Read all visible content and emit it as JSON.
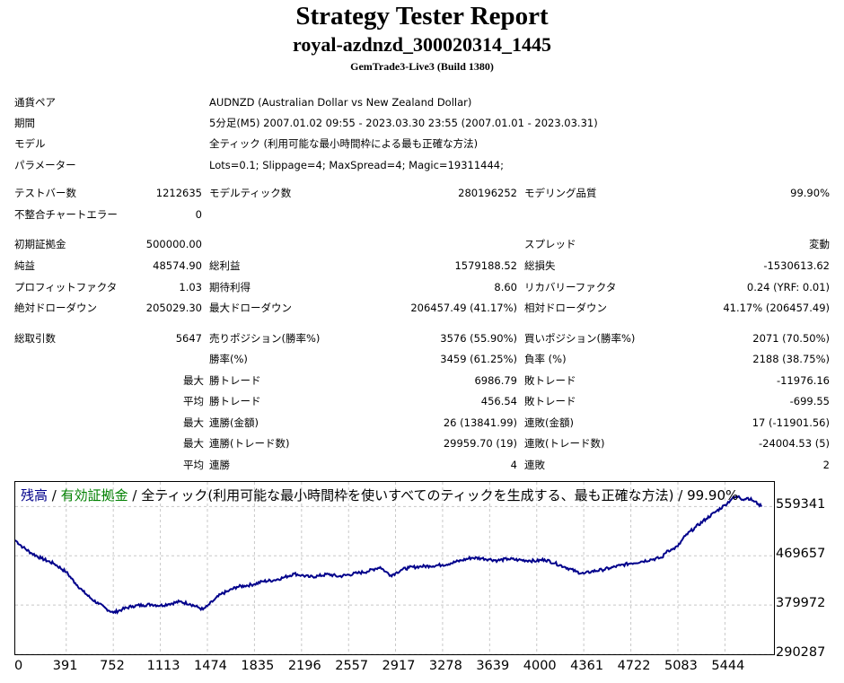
{
  "report": {
    "title": "Strategy Tester Report",
    "subtitle": "royal-azdnzd_300020314_1445",
    "build": "GemTrade3-Live3 (Build 1380)"
  },
  "info": {
    "pair_label": "通貨ペア",
    "pair_value": "AUDNZD (Australian Dollar vs New Zealand Dollar)",
    "period_label": "期間",
    "period_value": "5分足(M5) 2007.01.02 09:55 - 2023.03.30 23:55 (2007.01.01 - 2023.03.31)",
    "model_label": "モデル",
    "model_value": "全ティック (利用可能な最小時間枠による最も正確な方法)",
    "params_label": "パラメーター",
    "params_value": "Lots=0.1; Slippage=4; MaxSpread=4; Magic=19311444;"
  },
  "stats": {
    "bars_label": "テストバー数",
    "bars_value": "1212635",
    "ticks_label": "モデルティック数",
    "ticks_value": "280196252",
    "quality_label": "モデリング品質",
    "quality_value": "99.90%",
    "mismatch_label": "不整合チャートエラー",
    "mismatch_value": "0",
    "deposit_label": "初期証拠金",
    "deposit_value": "500000.00",
    "spread_label": "スプレッド",
    "spread_value": "変動",
    "net_label": "純益",
    "net_value": "48574.90",
    "gross_profit_label": "総利益",
    "gross_profit_value": "1579188.52",
    "gross_loss_label": "総損失",
    "gross_loss_value": "-1530613.62",
    "pf_label": "プロフィットファクタ",
    "pf_value": "1.03",
    "payoff_label": "期待利得",
    "payoff_value": "8.60",
    "recovery_label": "リカバリーファクタ",
    "recovery_value": "0.24 (YRF: 0.01)",
    "abs_dd_label": "絶対ドローダウン",
    "abs_dd_value": "205029.30",
    "max_dd_label": "最大ドローダウン",
    "max_dd_value": "206457.49 (41.17%)",
    "rel_dd_label": "相対ドローダウン",
    "rel_dd_value": "41.17% (206457.49)",
    "total_trades_label": "総取引数",
    "total_trades_value": "5647",
    "short_label": "売りポジション(勝率%)",
    "short_value": "3576 (55.90%)",
    "long_label": "買いポジション(勝率%)",
    "long_value": "2071 (70.50%)",
    "win_pct_label": "勝率(%)",
    "win_pct_value": "3459 (61.25%)",
    "loss_pct_label": "負率 (%)",
    "loss_pct_value": "2188 (38.75%)",
    "max_prefix": "最大",
    "avg_prefix": "平均",
    "largest_win_label": "勝トレード",
    "largest_win_value": "6986.79",
    "largest_loss_label": "敗トレード",
    "largest_loss_value": "-11976.16",
    "avg_win_label": "勝トレード",
    "avg_win_value": "456.54",
    "avg_loss_label": "敗トレード",
    "avg_loss_value": "-699.55",
    "max_cons_wins_label": "連勝(金額)",
    "max_cons_wins_value": "26 (13841.99)",
    "max_cons_losses_label": "連敗(金額)",
    "max_cons_losses_value": "17 (-11901.56)",
    "max_cons_profit_label": "連勝(トレード数)",
    "max_cons_profit_value": "29959.70 (19)",
    "max_cons_loss_label": "連敗(トレード数)",
    "max_cons_loss_value": "-24004.53 (5)",
    "avg_cons_wins_label": "連勝",
    "avg_cons_wins_value": "4",
    "avg_cons_losses_label": "連敗",
    "avg_cons_losses_value": "2"
  },
  "chart_legend": {
    "balance": "残高",
    "sep1": " / ",
    "equity": "有効証拠金",
    "rest": " / 全ティック(利用可能な最小時間枠を使いすべてのティックを生成する、最も正確な方法) / 99.90%"
  },
  "colors": {
    "balance": "#00008b",
    "equity": "#008000",
    "grid": "#c8c8c8"
  },
  "chart_data": {
    "type": "line",
    "series": [
      {
        "name": "残高",
        "x": [
          0,
          60,
          120,
          200,
          300,
          391,
          460,
          520,
          580,
          640,
          700,
          752,
          820,
          900,
          980,
          1050,
          1113,
          1180,
          1260,
          1340,
          1400,
          1440,
          1474,
          1520,
          1580,
          1640,
          1700,
          1760,
          1835,
          1900,
          1980,
          2060,
          2140,
          2196,
          2260,
          2330,
          2400,
          2480,
          2557,
          2620,
          2700,
          2760,
          2800,
          2840,
          2880,
          2917,
          2960,
          3020,
          3100,
          3180,
          3278,
          3340,
          3420,
          3500,
          3580,
          3639,
          3700,
          3780,
          3860,
          3940,
          4000,
          4060,
          4140,
          4220,
          4300,
          4361,
          4420,
          4500,
          4560,
          4640,
          4722,
          4800,
          4880,
          4960,
          5000,
          5040,
          5083,
          5140,
          5220,
          5300,
          5380,
          5444,
          5500,
          5550,
          5580,
          5620,
          5660,
          5700,
          5724
        ],
        "y": [
          498000,
          485000,
          475000,
          465000,
          455000,
          440000,
          420000,
          405000,
          392000,
          382000,
          373000,
          366000,
          372000,
          378000,
          380000,
          381000,
          379000,
          382000,
          386000,
          382000,
          376000,
          372000,
          378000,
          388000,
          400000,
          406000,
          413000,
          415000,
          418000,
          423000,
          425000,
          430000,
          437000,
          434000,
          431000,
          433000,
          436000,
          432000,
          435000,
          438000,
          441000,
          446000,
          449000,
          441000,
          434000,
          438000,
          444000,
          448000,
          450000,
          451000,
          453000,
          456000,
          461000,
          466000,
          465000,
          463000,
          461000,
          464000,
          462000,
          461000,
          460000,
          463000,
          456000,
          449000,
          441000,
          437000,
          441000,
          444000,
          447000,
          452000,
          456000,
          459000,
          463000,
          466000,
          479000,
          481000,
          487000,
          506000,
          522000,
          537000,
          551000,
          562000,
          574000,
          578000,
          572000,
          575000,
          570000,
          564000,
          559000
        ]
      }
    ],
    "y_ticks": [
      559341,
      469657,
      379972,
      290287
    ],
    "x_ticks": [
      0,
      391,
      752,
      1113,
      1474,
      1835,
      2196,
      2557,
      2917,
      3278,
      3639,
      4000,
      4361,
      4722,
      5083,
      5444
    ],
    "ylim": [
      290287,
      604000
    ],
    "xlim": [
      0,
      5820
    ],
    "grid": true
  }
}
